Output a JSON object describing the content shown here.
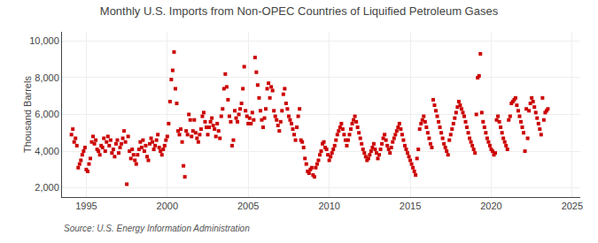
{
  "chart_data": {
    "type": "scatter",
    "title": "Monthly U.S. Imports from Non-OPEC Countries of Liquified Petroleum Gases",
    "ylabel": "Thousand Barrels",
    "annotations": [
      "Source: U.S. Energy Information Administration"
    ],
    "color": "#cc0000",
    "marker": "square",
    "grid": true,
    "xlim": [
      1993.5,
      2025.5
    ],
    "ylim": [
      1500,
      10500
    ],
    "xticks": [
      1995,
      2000,
      2005,
      2010,
      2015,
      2020,
      2025
    ],
    "yticks": [
      {
        "value": 2000,
        "label": "2,000"
      },
      {
        "value": 4000,
        "label": "4,000"
      },
      {
        "value": 6000,
        "label": "6,000"
      },
      {
        "value": 8000,
        "label": "8,000"
      },
      {
        "value": 10000,
        "label": "10,000"
      }
    ],
    "x": [
      1994.083,
      1994.167,
      1994.25,
      1994.333,
      1994.417,
      1994.5,
      1994.583,
      1994.667,
      1994.75,
      1994.833,
      1994.917,
      1995.0,
      1995.083,
      1995.167,
      1995.25,
      1995.333,
      1995.417,
      1995.5,
      1995.583,
      1995.667,
      1995.75,
      1995.833,
      1995.917,
      1996.0,
      1996.083,
      1996.167,
      1996.25,
      1996.333,
      1996.417,
      1996.5,
      1996.583,
      1996.667,
      1996.75,
      1996.833,
      1996.917,
      1997.0,
      1997.083,
      1997.167,
      1997.25,
      1997.333,
      1997.417,
      1997.5,
      1997.583,
      1997.667,
      1997.75,
      1997.833,
      1997.917,
      1998.0,
      1998.083,
      1998.167,
      1998.25,
      1998.333,
      1998.417,
      1998.5,
      1998.583,
      1998.667,
      1998.75,
      1998.833,
      1998.917,
      1999.0,
      1999.083,
      1999.167,
      1999.25,
      1999.333,
      1999.417,
      1999.5,
      1999.583,
      1999.667,
      1999.75,
      1999.833,
      1999.917,
      2000.0,
      2000.083,
      2000.167,
      2000.25,
      2000.333,
      2000.417,
      2000.5,
      2000.583,
      2000.667,
      2000.75,
      2000.833,
      2000.917,
      2001.0,
      2001.083,
      2001.167,
      2001.25,
      2001.333,
      2001.417,
      2001.5,
      2001.583,
      2001.667,
      2001.75,
      2001.833,
      2001.917,
      2002.0,
      2002.083,
      2002.167,
      2002.25,
      2002.333,
      2002.417,
      2002.5,
      2002.583,
      2002.667,
      2002.75,
      2002.833,
      2002.917,
      2003.0,
      2003.083,
      2003.167,
      2003.25,
      2003.333,
      2003.417,
      2003.5,
      2003.583,
      2003.667,
      2003.75,
      2003.833,
      2003.917,
      2004.0,
      2004.083,
      2004.167,
      2004.25,
      2004.333,
      2004.417,
      2004.5,
      2004.583,
      2004.667,
      2004.75,
      2004.833,
      2004.917,
      2005.0,
      2005.083,
      2005.167,
      2005.25,
      2005.333,
      2005.417,
      2005.5,
      2005.583,
      2005.667,
      2005.75,
      2005.833,
      2005.917,
      2006.0,
      2006.083,
      2006.167,
      2006.25,
      2006.333,
      2006.417,
      2006.5,
      2006.583,
      2006.667,
      2006.75,
      2006.833,
      2006.917,
      2007.0,
      2007.083,
      2007.167,
      2007.25,
      2007.333,
      2007.417,
      2007.5,
      2007.583,
      2007.667,
      2007.75,
      2007.833,
      2007.917,
      2008.0,
      2008.083,
      2008.167,
      2008.25,
      2008.333,
      2008.417,
      2008.5,
      2008.583,
      2008.667,
      2008.75,
      2008.833,
      2008.917,
      2009.0,
      2009.083,
      2009.167,
      2009.25,
      2009.333,
      2009.417,
      2009.5,
      2009.583,
      2009.667,
      2009.75,
      2009.833,
      2009.917,
      2010.0,
      2010.083,
      2010.167,
      2010.25,
      2010.333,
      2010.417,
      2010.5,
      2010.583,
      2010.667,
      2010.75,
      2010.833,
      2010.917,
      2011.0,
      2011.083,
      2011.167,
      2011.25,
      2011.333,
      2011.417,
      2011.5,
      2011.583,
      2011.667,
      2011.75,
      2011.833,
      2011.917,
      2012.0,
      2012.083,
      2012.167,
      2012.25,
      2012.333,
      2012.417,
      2012.5,
      2012.583,
      2012.667,
      2012.75,
      2012.833,
      2012.917,
      2013.0,
      2013.083,
      2013.167,
      2013.25,
      2013.333,
      2013.417,
      2013.5,
      2013.583,
      2013.667,
      2013.75,
      2013.833,
      2013.917,
      2014.0,
      2014.083,
      2014.167,
      2014.25,
      2014.333,
      2014.417,
      2014.5,
      2014.583,
      2014.667,
      2014.75,
      2014.833,
      2014.917,
      2015.0,
      2015.083,
      2015.167,
      2015.25,
      2015.333,
      2015.417,
      2015.5,
      2015.583,
      2015.667,
      2015.75,
      2015.833,
      2015.917,
      2016.0,
      2016.083,
      2016.167,
      2016.25,
      2016.333,
      2016.417,
      2016.5,
      2016.583,
      2016.667,
      2016.75,
      2016.833,
      2016.917,
      2017.0,
      2017.083,
      2017.167,
      2017.25,
      2017.333,
      2017.417,
      2017.5,
      2017.583,
      2017.667,
      2017.75,
      2017.833,
      2017.917,
      2018.0,
      2018.083,
      2018.167,
      2018.25,
      2018.333,
      2018.417,
      2018.5,
      2018.583,
      2018.667,
      2018.75,
      2018.833,
      2018.917,
      2019.0,
      2019.083,
      2019.167,
      2019.25,
      2019.333,
      2019.417,
      2019.5,
      2019.583,
      2019.667,
      2019.75,
      2019.833,
      2019.917,
      2020.0,
      2020.083,
      2020.167,
      2020.25,
      2020.333,
      2020.417,
      2020.5,
      2020.583,
      2020.667,
      2020.75,
      2020.833,
      2020.917,
      2021.0,
      2021.083,
      2021.167,
      2021.25,
      2021.333,
      2021.417,
      2021.5,
      2021.583,
      2021.667,
      2021.75,
      2021.833,
      2021.917,
      2022.0,
      2022.083,
      2022.167,
      2022.25,
      2022.333,
      2022.417,
      2022.5,
      2022.583,
      2022.667,
      2022.75,
      2022.833,
      2022.917,
      2023.0,
      2023.083,
      2023.167,
      2023.25,
      2023.333,
      2023.417,
      2023.5
    ],
    "values": [
      4900,
      5200,
      4500,
      4700,
      4300,
      3100,
      3300,
      3500,
      3800,
      4000,
      4200,
      3000,
      2900,
      3300,
      3600,
      4500,
      4800,
      4400,
      4600,
      4100,
      4000,
      3800,
      4300,
      4200,
      4700,
      4000,
      4500,
      4800,
      4300,
      4600,
      3900,
      4100,
      3700,
      4400,
      4600,
      3900,
      4200,
      4400,
      4700,
      5100,
      4500,
      2200,
      4800,
      4000,
      3600,
      4100,
      3800,
      3500,
      3300,
      3800,
      4100,
      4500,
      4200,
      4600,
      4000,
      4300,
      3700,
      3500,
      4400,
      4700,
      4500,
      4100,
      4300,
      4600,
      4900,
      4200,
      4000,
      3800,
      4100,
      4300,
      4600,
      4800,
      5500,
      6700,
      7900,
      8400,
      9400,
      7400,
      6600,
      5100,
      4900,
      5200,
      4500,
      3200,
      2600,
      5100,
      4900,
      6000,
      5700,
      4800,
      5100,
      5700,
      5000,
      4700,
      4500,
      4900,
      5200,
      5900,
      6100,
      5600,
      5300,
      4900,
      5300,
      5600,
      5800,
      5400,
      5200,
      4800,
      5500,
      5100,
      4700,
      5900,
      6300,
      7400,
      8200,
      7500,
      6800,
      5900,
      5600,
      4300,
      4600,
      6200,
      5800,
      5600,
      6000,
      6300,
      6600,
      7400,
      8600,
      6200,
      5900,
      5500,
      5800,
      5500,
      6100,
      5700,
      9100,
      8300,
      7600,
      6900,
      6200,
      5700,
      5300,
      5800,
      6300,
      7400,
      7700,
      6900,
      7500,
      7300,
      6200,
      5900,
      5700,
      5400,
      5100,
      5600,
      6200,
      7100,
      7400,
      6600,
      6300,
      5900,
      5700,
      5500,
      5200,
      4900,
      4600,
      5300,
      5900,
      6300,
      4600,
      4500,
      4200,
      3600,
      3300,
      2900,
      2800,
      3000,
      3100,
      2700,
      2600,
      3100,
      3300,
      3500,
      3800,
      4000,
      4400,
      4500,
      4200,
      4100,
      3800,
      3500,
      3700,
      3900,
      4100,
      4300,
      4600,
      4900,
      5100,
      5300,
      5500,
      5200,
      4900,
      4600,
      4300,
      4600,
      4900,
      5200,
      5500,
      5700,
      5900,
      5600,
      5300,
      5000,
      4700,
      4400,
      4100,
      3900,
      3700,
      3500,
      3600,
      3800,
      4000,
      4200,
      4400,
      4100,
      3900,
      3600,
      3800,
      4100,
      4400,
      4700,
      4900,
      4600,
      4300,
      4100,
      3900,
      4200,
      4500,
      4700,
      4900,
      5100,
      5300,
      5500,
      5200,
      4900,
      4600,
      4300,
      4100,
      3900,
      3700,
      3500,
      3300,
      3100,
      2900,
      2700,
      3600,
      4100,
      5200,
      5500,
      5700,
      5900,
      5600,
      5300,
      5000,
      4700,
      4400,
      4200,
      6800,
      6500,
      6200,
      5900,
      5600,
      5300,
      5000,
      4700,
      4400,
      4200,
      4000,
      3800,
      4600,
      4900,
      5200,
      5500,
      5800,
      6100,
      6400,
      6700,
      6500,
      6300,
      6100,
      5900,
      5600,
      5300,
      5000,
      4700,
      4500,
      4300,
      4100,
      3900,
      6000,
      8000,
      8100,
      9300,
      6100,
      5600,
      5300,
      5000,
      4700,
      4500,
      4300,
      4100,
      4000,
      3800,
      3900,
      5700,
      5900,
      5600,
      5300,
      5000,
      4700,
      4500,
      4300,
      4100,
      5700,
      5900,
      6600,
      6700,
      6800,
      6900,
      6500,
      6200,
      5900,
      5600,
      5300,
      5000,
      4000,
      6300,
      4700,
      6200,
      6600,
      6900,
      6700,
      6400,
      6100,
      5800,
      5500,
      5200,
      4900,
      6900,
      5700,
      6100,
      6200,
      6300
    ]
  }
}
